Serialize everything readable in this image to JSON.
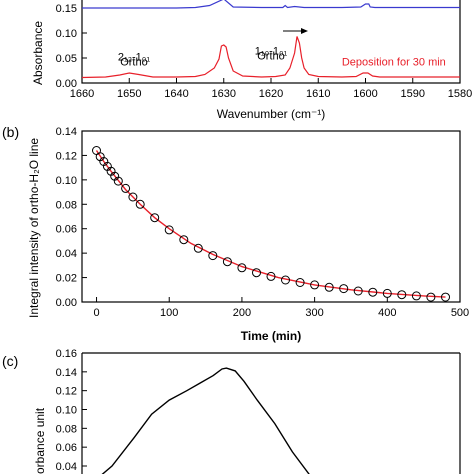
{
  "chart_data": [
    {
      "panel": "(a)",
      "type": "line",
      "xlabel": "Wavenumber (cm⁻¹)",
      "ylabel": "Absorbance",
      "xlim": [
        1660,
        1580
      ],
      "ylim": [
        0,
        0.17
      ],
      "x_reversed": true,
      "xticks": [
        1660,
        1650,
        1640,
        1630,
        1620,
        1610,
        1600,
        1590,
        1580
      ],
      "yticks": [
        0.0,
        0.05,
        0.1,
        0.15
      ],
      "ytick_labels": [
        "0.00",
        "0.05",
        "0.10",
        "0.15"
      ],
      "annotations": [
        {
          "text": "2₁₂-1₀₁",
          "x": 1649,
          "y": 0.045
        },
        {
          "text": "Ortho",
          "x": 1649,
          "y": 0.035
        },
        {
          "text": "1₁₀-1₀₁",
          "x": 1620,
          "y": 0.057
        },
        {
          "text": "Ortho",
          "x": 1620,
          "y": 0.047
        },
        {
          "text": "Deposition for 30 min",
          "x": 1594,
          "y": 0.035,
          "color": "#e8202a"
        }
      ],
      "series": [
        {
          "color": "#3a3acf",
          "x": [
            1660,
            1640,
            1636,
            1633,
            1630,
            1628,
            1622,
            1617.5,
            1617,
            1616.5,
            1615,
            1613,
            1605,
            1601,
            1600,
            1599.3,
            1599,
            1598,
            1596,
            1585,
            1580
          ],
          "y": [
            0.15,
            0.15,
            0.151,
            0.155,
            0.168,
            0.152,
            0.151,
            0.151,
            0.155,
            0.151,
            0.153,
            0.151,
            0.151,
            0.152,
            0.158,
            0.158,
            0.152,
            0.151,
            0.151,
            0.151,
            0.151
          ]
        },
        {
          "color": "#e8202a",
          "x": [
            1660,
            1655,
            1652,
            1650,
            1648,
            1645,
            1640,
            1636,
            1634,
            1632,
            1631,
            1630.5,
            1630,
            1629.5,
            1629,
            1628,
            1626,
            1622,
            1619,
            1617,
            1616,
            1615,
            1614.5,
            1614,
            1613.5,
            1613,
            1612,
            1610,
            1605,
            1602,
            1600.5,
            1599.5,
            1598.5,
            1597,
            1590,
            1580
          ],
          "y": [
            0.011,
            0.012,
            0.016,
            0.02,
            0.017,
            0.012,
            0.012,
            0.013,
            0.017,
            0.03,
            0.048,
            0.074,
            0.076,
            0.072,
            0.05,
            0.024,
            0.014,
            0.012,
            0.013,
            0.016,
            0.03,
            0.06,
            0.093,
            0.08,
            0.05,
            0.03,
            0.017,
            0.013,
            0.012,
            0.013,
            0.02,
            0.02,
            0.014,
            0.012,
            0.012,
            0.012
          ]
        }
      ]
    },
    {
      "panel": "(b)",
      "type": "scatter",
      "xlabel": "Time (min)",
      "ylabel": "Integral intensity of ortho-H₂O line",
      "xlim": [
        -20,
        500
      ],
      "ylim": [
        0,
        0.14
      ],
      "xticks": [
        0,
        100,
        200,
        300,
        400,
        500
      ],
      "yticks": [
        0.0,
        0.02,
        0.04,
        0.06,
        0.08,
        0.1,
        0.12,
        0.14
      ],
      "ytick_labels": [
        "0.00",
        "0.02",
        "0.04",
        "0.06",
        "0.08",
        "0.10",
        "0.12",
        "0.14"
      ],
      "points": {
        "x": [
          0,
          5,
          10,
          15,
          20,
          25,
          30,
          40,
          50,
          60,
          80,
          100,
          120,
          140,
          160,
          180,
          200,
          220,
          240,
          260,
          280,
          300,
          320,
          340,
          360,
          380,
          400,
          420,
          440,
          460,
          480
        ],
        "y": [
          0.124,
          0.119,
          0.115,
          0.111,
          0.107,
          0.103,
          0.099,
          0.093,
          0.086,
          0.08,
          0.069,
          0.059,
          0.051,
          0.044,
          0.038,
          0.033,
          0.028,
          0.024,
          0.021,
          0.018,
          0.016,
          0.014,
          0.012,
          0.011,
          0.009,
          0.008,
          0.007,
          0.006,
          0.005,
          0.004,
          0.004
        ]
      },
      "fit": {
        "color": "#e8202a",
        "x": [
          0,
          10,
          20,
          40,
          60,
          80,
          100,
          130,
          160,
          200,
          250,
          300,
          350,
          400,
          450,
          480
        ],
        "y": [
          0.124,
          0.115,
          0.107,
          0.092,
          0.08,
          0.069,
          0.06,
          0.048,
          0.039,
          0.029,
          0.02,
          0.014,
          0.01,
          0.007,
          0.005,
          0.004
        ]
      }
    },
    {
      "panel": "(c)",
      "type": "line",
      "ylabel": "orbance unit",
      "ylim": [
        0.03,
        0.16
      ],
      "yticks": [
        0.04,
        0.06,
        0.08,
        0.1,
        0.12,
        0.14,
        0.16
      ],
      "ytick_labels": [
        "0.04",
        "0.06",
        "0.08",
        "0.10",
        "0.12",
        "0.14",
        "0.16"
      ],
      "series": [
        {
          "color": "#000000",
          "x": [
            0,
            5,
            10,
            14,
            18,
            22,
            25,
            28,
            30,
            31,
            33,
            35,
            38,
            42,
            46,
            50
          ],
          "y": [
            0.02,
            0.04,
            0.07,
            0.095,
            0.11,
            0.12,
            0.128,
            0.136,
            0.143,
            0.144,
            0.141,
            0.13,
            0.11,
            0.085,
            0.055,
            0.03
          ]
        }
      ]
    }
  ]
}
